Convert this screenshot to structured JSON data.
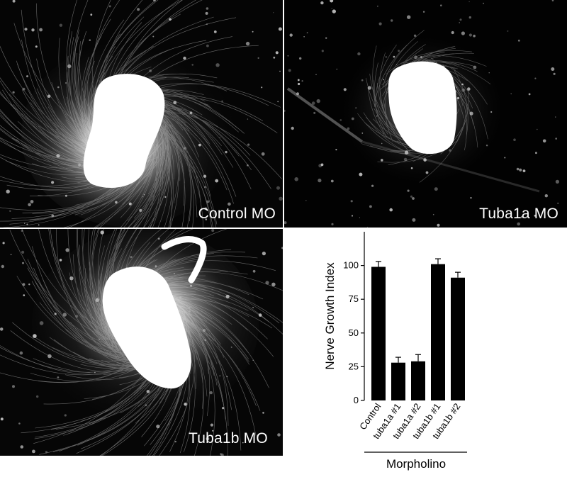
{
  "panels": [
    {
      "id": "panel-a",
      "label": "Control MO"
    },
    {
      "id": "panel-b",
      "label": "Tuba1a MO"
    },
    {
      "id": "panel-c",
      "label": "Tuba1b MO"
    }
  ],
  "chart_data": {
    "type": "bar",
    "categories": [
      "Control",
      "tuba1a #1",
      "tuba1a #2",
      "tuba1b #1",
      "tuba1b #2"
    ],
    "values": [
      99,
      28,
      29,
      101,
      91
    ],
    "errors": [
      4,
      4,
      5,
      4,
      4
    ],
    "title": "",
    "xlabel": "Morpholino",
    "ylabel": "Nerve Growth Index",
    "yticks": [
      0,
      25,
      50,
      75,
      100
    ],
    "ylim": [
      0,
      125
    ],
    "grid": false,
    "bar_color": "#000000"
  }
}
